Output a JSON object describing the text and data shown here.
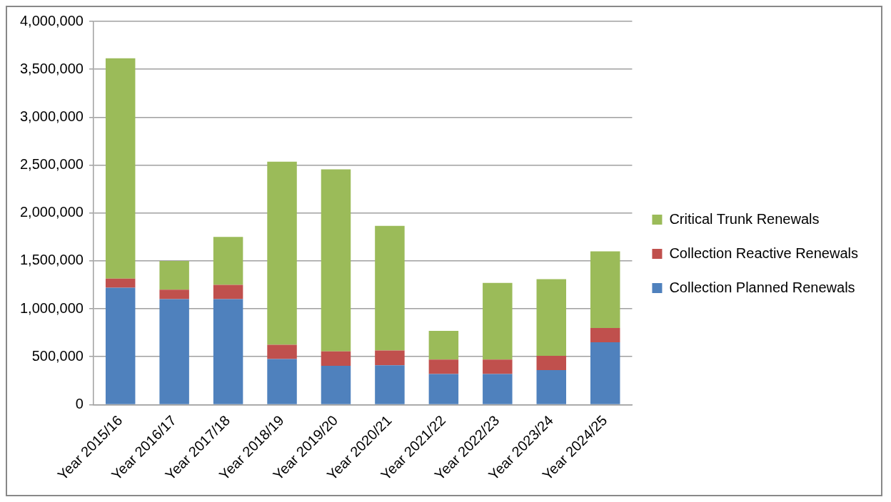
{
  "chart_data": {
    "type": "bar",
    "stacked": true,
    "categories": [
      "Year 2015/16",
      "Year 2016/17",
      "Year 2017/18",
      "Year 2018/19",
      "Year 2019/20",
      "Year 2020/21",
      "Year 2021/22",
      "Year 2022/23",
      "Year 2023/24",
      "Year 2024/25"
    ],
    "series": [
      {
        "name": "Collection Planned Renewals",
        "color": "#4f81bd",
        "values": [
          1220000,
          1100000,
          1100000,
          475000,
          405000,
          410000,
          320000,
          320000,
          360000,
          650000
        ]
      },
      {
        "name": "Collection Reactive Renewals",
        "color": "#c0504d",
        "values": [
          95000,
          100000,
          150000,
          150000,
          150000,
          155000,
          150000,
          150000,
          150000,
          150000
        ]
      },
      {
        "name": "Critical Trunk Renewals",
        "color": "#9bbb59",
        "values": [
          2300000,
          300000,
          500000,
          1910000,
          1900000,
          1300000,
          300000,
          800000,
          800000,
          800000
        ]
      }
    ],
    "ylim": [
      0,
      4000000
    ],
    "yticks": [
      0,
      {
        "value": 500000,
        "label": "500,000"
      },
      {
        "value": 1000000,
        "label": "1,000,000"
      },
      {
        "value": 1500000,
        "label": "1,500,000"
      },
      {
        "value": 2000000,
        "label": "2,000,000"
      },
      {
        "value": 2500000,
        "label": "2,500,000"
      },
      {
        "value": 3000000,
        "label": "3,000,000"
      },
      {
        "value": 3500000,
        "label": "3,500,000"
      },
      {
        "value": 4000000,
        "label": "4,000,000"
      }
    ],
    "grid": "y",
    "legend": "right"
  }
}
